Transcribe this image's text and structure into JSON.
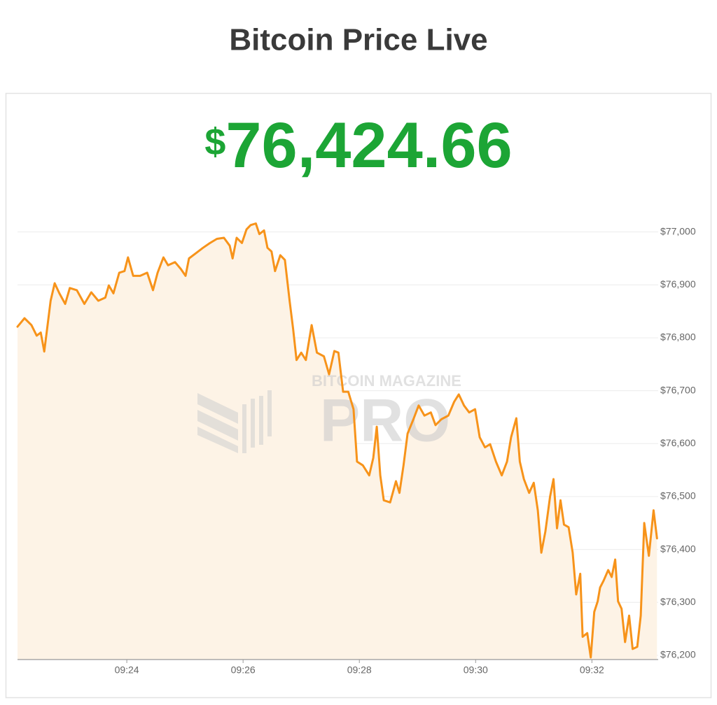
{
  "chart_data": {
    "type": "line",
    "title": "Bitcoin Price Live",
    "currency": "$",
    "price": "76,424.66",
    "watermark": [
      "BITCOIN MAGAZINE",
      "PRO"
    ],
    "color": "#f7931a",
    "fill": "#fdf3e6",
    "grid": true,
    "x": [
      22.12,
      22.24,
      22.36,
      22.45,
      22.52,
      22.58,
      22.63,
      22.69,
      22.76,
      22.84,
      22.94,
      23.02,
      23.14,
      23.27,
      23.39,
      23.51,
      23.63,
      23.69,
      23.77,
      23.87,
      23.96,
      24.02,
      24.11,
      24.23,
      24.35,
      24.45,
      24.53,
      24.63,
      24.71,
      24.83,
      24.93,
      25.01,
      25.07,
      25.19,
      25.31,
      25.43,
      25.55,
      25.67,
      25.77,
      25.82,
      25.89,
      25.98,
      26.06,
      26.13,
      26.22,
      26.28,
      26.36,
      26.42,
      26.49,
      26.55,
      26.64,
      26.72,
      26.8,
      26.86,
      26.92,
      27.0,
      27.08,
      27.18,
      27.27,
      27.39,
      27.48,
      27.57,
      27.64,
      27.72,
      27.81,
      27.9,
      27.96,
      28.06,
      28.17,
      28.24,
      28.3,
      28.36,
      28.42,
      28.53,
      28.63,
      28.69,
      28.76,
      28.83,
      28.93,
      29.02,
      29.12,
      29.23,
      29.31,
      29.41,
      29.53,
      29.63,
      29.71,
      29.8,
      29.89,
      29.99,
      30.07,
      30.16,
      30.25,
      30.35,
      30.45,
      30.54,
      30.61,
      30.7,
      30.76,
      30.83,
      30.92,
      31.0,
      31.07,
      31.13,
      31.2,
      31.28,
      31.34,
      31.4,
      31.46,
      31.52,
      31.6,
      31.67,
      31.73,
      31.8,
      31.84,
      31.92,
      31.98,
      32.04,
      32.1,
      32.14,
      32.2,
      32.28,
      32.34,
      32.4,
      32.45,
      32.51,
      32.57,
      32.64,
      32.7,
      32.78,
      32.84,
      32.9,
      32.98,
      33.06,
      33.12
    ],
    "values": [
      76821,
      76837,
      76824,
      76804,
      76810,
      76774,
      76817,
      76870,
      76903,
      76884,
      76864,
      76894,
      76890,
      76864,
      76886,
      76870,
      76876,
      76899,
      76884,
      76923,
      76926,
      76952,
      76917,
      76917,
      76923,
      76890,
      76923,
      76952,
      76937,
      76943,
      76930,
      76917,
      76950,
      76960,
      76970,
      76979,
      76987,
      76989,
      76974,
      76950,
      76989,
      76979,
      77005,
      77013,
      77016,
      76996,
      77003,
      76970,
      76963,
      76926,
      76956,
      76947,
      76870,
      76817,
      76758,
      76772,
      76758,
      76824,
      76772,
      76765,
      76731,
      76775,
      76772,
      76698,
      76698,
      76665,
      76566,
      76559,
      76540,
      76573,
      76632,
      76540,
      76493,
      76489,
      76529,
      76507,
      76559,
      76619,
      76646,
      76672,
      76653,
      76659,
      76635,
      76646,
      76653,
      76679,
      76693,
      76672,
      76659,
      76665,
      76612,
      76593,
      76599,
      76566,
      76540,
      76566,
      76612,
      76648,
      76566,
      76533,
      76507,
      76526,
      76474,
      76394,
      76434,
      76500,
      76533,
      76440,
      76493,
      76447,
      76442,
      76394,
      76315,
      76354,
      76235,
      76242,
      76196,
      76282,
      76302,
      76328,
      76341,
      76361,
      76348,
      76381,
      76302,
      76288,
      76225,
      76275,
      76212,
      76216,
      76275,
      76450,
      76388,
      76474,
      76421
    ],
    "xlim": [
      22.12,
      33.14
    ],
    "xticks": [
      {
        "value": 24,
        "label": "09:24"
      },
      {
        "value": 26,
        "label": "09:26"
      },
      {
        "value": 28,
        "label": "09:28"
      },
      {
        "value": 30,
        "label": "09:30"
      },
      {
        "value": 32,
        "label": "09:32"
      }
    ],
    "ylim": [
      76192,
      77022
    ],
    "yticks": [
      {
        "value": 76200,
        "label": "$76,200"
      },
      {
        "value": 76300,
        "label": "$76,300"
      },
      {
        "value": 76400,
        "label": "$76,400"
      },
      {
        "value": 76500,
        "label": "$76,500"
      },
      {
        "value": 76600,
        "label": "$76,600"
      },
      {
        "value": 76700,
        "label": "$76,700"
      },
      {
        "value": 76800,
        "label": "$76,800"
      },
      {
        "value": 76900,
        "label": "$76,900"
      },
      {
        "value": 77000,
        "label": "$77,000"
      }
    ]
  }
}
